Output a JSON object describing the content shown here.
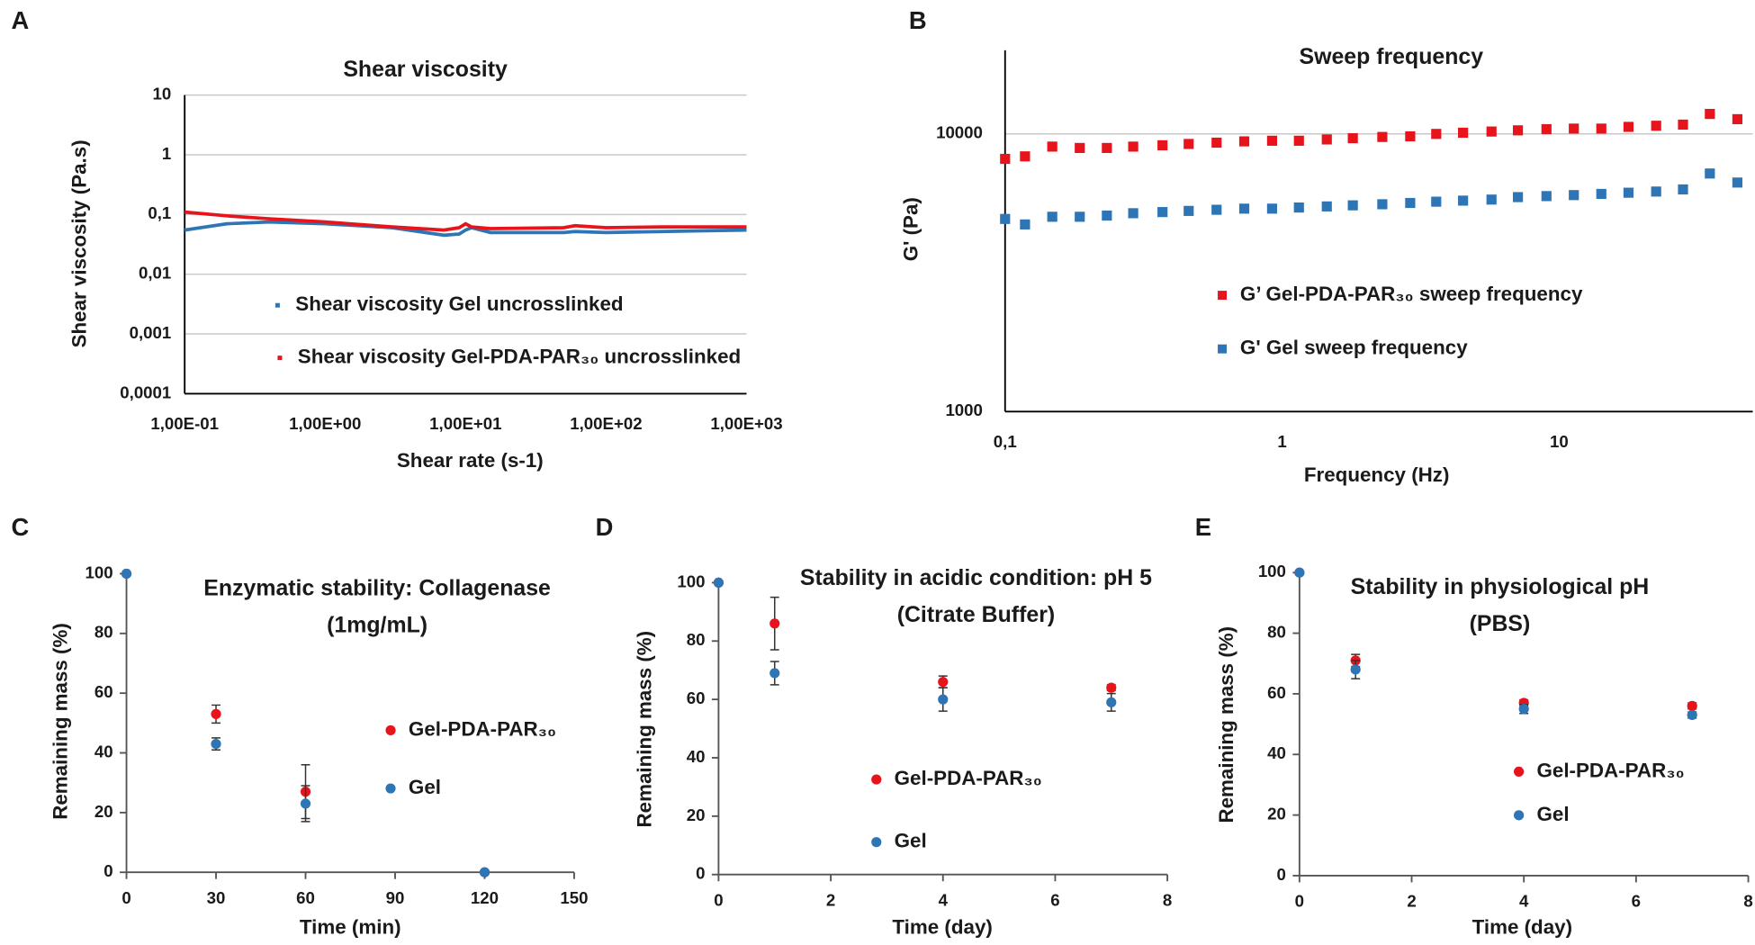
{
  "chart_data": [
    {
      "type": "line",
      "panel": "A",
      "title": [
        "Shear viscosity"
      ],
      "xlabel": "Shear rate (s-1)",
      "ylabel": "Shear viscosity (Pa.s)",
      "xscale": "log",
      "yscale": "log",
      "grid": true,
      "xlim": [
        0.1,
        1000
      ],
      "ylim": [
        0.0001,
        10
      ],
      "xticks": [
        {
          "value": 0.1,
          "label": "1,00E-01"
        },
        {
          "value": 1,
          "label": "1,00E+00"
        },
        {
          "value": 10,
          "label": "1,00E+01"
        },
        {
          "value": 100,
          "label": "1,00E+02"
        },
        {
          "value": 1000,
          "label": "1,00E+03"
        }
      ],
      "yticks": [
        {
          "value": 0.0001,
          "label": "0,0001"
        },
        {
          "value": 0.001,
          "label": "0,001"
        },
        {
          "value": 0.01,
          "label": "0,01"
        },
        {
          "value": 0.1,
          "label": "0,1"
        },
        1,
        10
      ],
      "x": [
        0.1,
        0.2,
        0.4,
        1,
        3,
        7,
        9,
        10,
        11,
        15,
        50,
        60,
        100,
        250,
        1000
      ],
      "series": [
        {
          "name": "Shear viscosity Gel uncrosslinked",
          "color": "#2e75b6",
          "values": [
            0.055,
            0.07,
            0.075,
            0.07,
            0.06,
            0.045,
            0.047,
            0.055,
            0.06,
            0.05,
            0.05,
            0.052,
            0.05,
            0.052,
            0.055
          ]
        },
        {
          "name": "Shear viscosity Gel-PDA-PAR₃₀ uncrosslinked",
          "color": "#e8141b",
          "values": [
            0.11,
            0.095,
            0.085,
            0.075,
            0.062,
            0.055,
            0.06,
            0.07,
            0.062,
            0.058,
            0.06,
            0.065,
            0.06,
            0.062,
            0.062
          ]
        }
      ]
    },
    {
      "type": "scatter",
      "panel": "B",
      "title": [
        "Sweep frequency"
      ],
      "xlabel": "Frequency (Hz)",
      "ylabel": "G' (Pa)",
      "xscale": "log",
      "yscale": "log",
      "grid": true,
      "marker": "square",
      "xlim": [
        0.1,
        50
      ],
      "ylim": [
        1000,
        20000
      ],
      "xticks": [
        {
          "value": 0.1,
          "label": "0,1"
        },
        1,
        10
      ],
      "yticks": [
        1000,
        10000
      ],
      "x": [
        0.1,
        0.118,
        0.148,
        0.186,
        0.233,
        0.29,
        0.37,
        0.46,
        0.58,
        0.73,
        0.92,
        1.15,
        1.45,
        1.8,
        2.3,
        2.9,
        3.6,
        4.5,
        5.7,
        7.1,
        9,
        11.3,
        14.2,
        17.8,
        22.4,
        28,
        35,
        44
      ],
      "series": [
        {
          "name": "G’ Gel-PDA-PAR₃₀ sweep frequency",
          "color": "#e8141b",
          "values": [
            8130,
            8300,
            9000,
            8900,
            8900,
            9000,
            9100,
            9200,
            9300,
            9400,
            9450,
            9450,
            9550,
            9650,
            9750,
            9800,
            10000,
            10100,
            10200,
            10300,
            10400,
            10450,
            10450,
            10600,
            10700,
            10800,
            11800,
            11300
          ]
        },
        {
          "name": "G' Gel sweep frequency",
          "color": "#2e75b6",
          "values": [
            4940,
            4720,
            5030,
            5030,
            5080,
            5180,
            5230,
            5280,
            5330,
            5380,
            5380,
            5430,
            5480,
            5530,
            5580,
            5640,
            5700,
            5750,
            5800,
            5920,
            5970,
            6020,
            6080,
            6140,
            6200,
            6310,
            7200,
            6680
          ]
        }
      ]
    },
    {
      "type": "scatter",
      "panel": "C",
      "title": [
        "Enzymatic stability: Collagenase",
        "(1mg/mL)"
      ],
      "xlabel": "Time (min)",
      "ylabel": "Remaining mass (%)",
      "marker": "circle",
      "xlim": [
        0,
        150
      ],
      "ylim": [
        0,
        100
      ],
      "xticks": [
        0,
        30,
        60,
        90,
        120,
        150
      ],
      "yticks": [
        0,
        20,
        40,
        60,
        80,
        100
      ],
      "x": [
        0,
        30,
        60,
        120
      ],
      "series": [
        {
          "name": "Gel-PDA-PAR₃₀",
          "color": "#e8141b",
          "values": [
            100,
            53,
            27,
            0
          ],
          "errors": [
            0,
            3,
            9,
            0
          ]
        },
        {
          "name": "Gel",
          "color": "#2e75b6",
          "values": [
            100,
            43,
            23,
            0
          ],
          "errors": [
            0,
            2,
            6,
            0
          ]
        }
      ]
    },
    {
      "type": "scatter",
      "panel": "D",
      "title": [
        "Stability in acidic condition: pH 5",
        "(Citrate Buffer)"
      ],
      "xlabel": "Time (day)",
      "ylabel": "Remaining mass (%)",
      "marker": "circle",
      "xlim": [
        0,
        8
      ],
      "ylim": [
        0,
        100
      ],
      "xticks": [
        0,
        2,
        4,
        6,
        8
      ],
      "yticks": [
        0,
        20,
        40,
        60,
        80,
        100
      ],
      "x": [
        0,
        1,
        4,
        7
      ],
      "series": [
        {
          "name": "Gel-PDA-PAR₃₀",
          "color": "#e8141b",
          "values": [
            100,
            86,
            66,
            64
          ],
          "errors": [
            0,
            9,
            2,
            1
          ]
        },
        {
          "name": "Gel",
          "color": "#2e75b6",
          "values": [
            100,
            69,
            60,
            59
          ],
          "errors": [
            0,
            4,
            4,
            3
          ]
        }
      ]
    },
    {
      "type": "scatter",
      "panel": "E",
      "title": [
        "Stability in physiological pH",
        "(PBS)"
      ],
      "xlabel": "Time (day)",
      "ylabel": "Remaining mass (%)",
      "marker": "circle",
      "xlim": [
        0,
        8
      ],
      "ylim": [
        0,
        100
      ],
      "xticks": [
        0,
        2,
        4,
        6,
        8
      ],
      "yticks": [
        0,
        20,
        40,
        60,
        80,
        100
      ],
      "x": [
        0,
        1,
        4,
        7
      ],
      "series": [
        {
          "name": "Gel-PDA-PAR₃₀",
          "color": "#e8141b",
          "values": [
            100,
            71,
            57,
            56
          ],
          "errors": [
            0,
            2,
            1,
            1
          ]
        },
        {
          "name": "Gel",
          "color": "#2e75b6",
          "values": [
            100,
            68,
            55,
            53
          ],
          "errors": [
            0,
            3,
            1.5,
            1
          ]
        }
      ]
    }
  ]
}
